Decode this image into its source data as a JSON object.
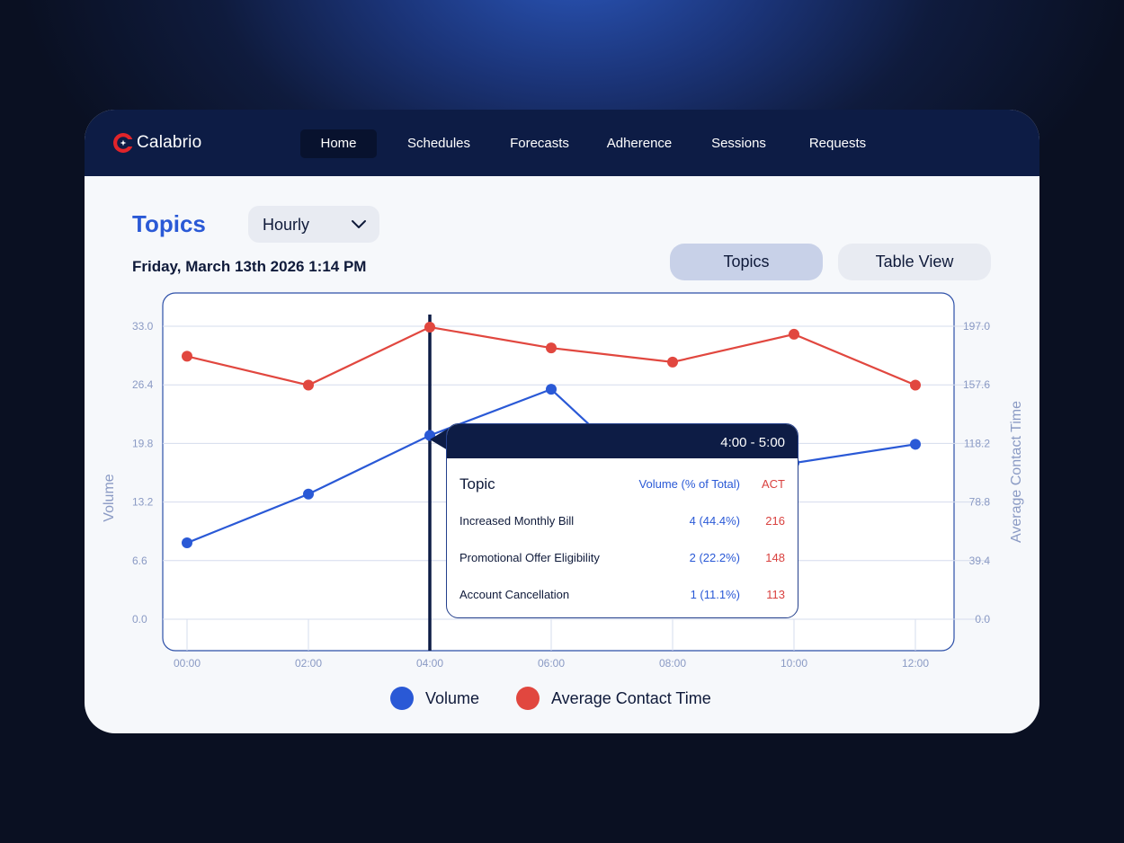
{
  "app": {
    "brand": "Calabrio",
    "brand_colors": {
      "accent": "#e0242a",
      "nav_bg": "#0d1c45"
    }
  },
  "nav": {
    "items": [
      {
        "label": "Home",
        "active": true
      },
      {
        "label": "Schedules",
        "active": false
      },
      {
        "label": "Forecasts",
        "active": false
      },
      {
        "label": "Adherence",
        "active": false
      },
      {
        "label": "Sessions",
        "active": false
      },
      {
        "label": "Requests",
        "active": false
      }
    ]
  },
  "header": {
    "title": "Topics",
    "granularity": {
      "selected": "Hourly",
      "icon": "chevron-down-icon"
    },
    "datetime": "Friday, March 13th 2026 1:14 PM",
    "views": [
      {
        "label": "Topics",
        "selected": true
      },
      {
        "label": "Table View",
        "selected": false
      }
    ]
  },
  "chart_data": {
    "type": "line",
    "x": [
      "00:00",
      "02:00",
      "04:00",
      "06:00",
      "08:00",
      "10:00",
      "12:00"
    ],
    "series": [
      {
        "name": "Volume",
        "axis": "left",
        "color": "#2a59d6",
        "values": [
          8.6,
          14.1,
          20.7,
          25.9,
          13.2,
          17.6,
          19.7
        ]
      },
      {
        "name": "Average Contact Time",
        "axis": "right",
        "color": "#e1473f",
        "values": [
          176.8,
          157.4,
          196.4,
          182.4,
          172.9,
          191.6,
          157.4
        ]
      }
    ],
    "left_axis": {
      "label": "Volume",
      "ticks": [
        "0.0",
        "6.6",
        "13.2",
        "19.8",
        "26.4",
        "33.0"
      ],
      "ylim": [
        0,
        33
      ]
    },
    "right_axis": {
      "label": "Average Contact Time",
      "ticks": [
        "0.0",
        "39.4",
        "78.8",
        "118.2",
        "157.6",
        "197.0"
      ],
      "ylim": [
        0,
        197
      ]
    },
    "highlight_x": "04:00",
    "grid": true,
    "legend_position": "bottom"
  },
  "tooltip": {
    "range": "4:00 - 5:00",
    "columns": {
      "topic": "Topic",
      "volume": "Volume (% of Total)",
      "act": "ACT"
    },
    "rows": [
      {
        "topic": "Increased Monthly Bill",
        "volume": "4 (44.4%)",
        "act": "216"
      },
      {
        "topic": "Promotional Offer Eligibility",
        "volume": "2 (22.2%)",
        "act": "148"
      },
      {
        "topic": "Account Cancellation",
        "volume": "1 (11.1%)",
        "act": "113"
      }
    ]
  },
  "legend": {
    "items": [
      {
        "label": "Volume",
        "color": "#2a59d6"
      },
      {
        "label": "Average Contact Time",
        "color": "#e1473f"
      }
    ]
  }
}
